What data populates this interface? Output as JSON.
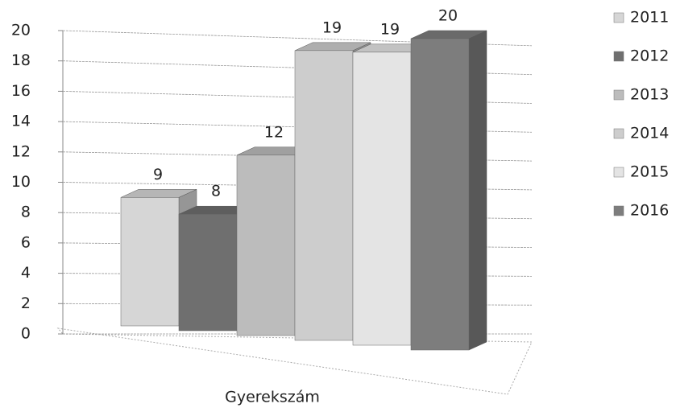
{
  "chart_data": {
    "type": "bar3d",
    "categories": [
      "Gyerekszám"
    ],
    "series": [
      {
        "name": "2011",
        "color": "#d6d6d6",
        "values": [
          9
        ]
      },
      {
        "name": "2012",
        "color": "#6f6f6f",
        "values": [
          8
        ]
      },
      {
        "name": "2013",
        "color": "#bcbcbc",
        "values": [
          12
        ]
      },
      {
        "name": "2014",
        "color": "#cdcdcd",
        "values": [
          19
        ]
      },
      {
        "name": "2015",
        "color": "#e4e4e4",
        "values": [
          19
        ]
      },
      {
        "name": "2016",
        "color": "#7d7d7d",
        "values": [
          20
        ]
      }
    ],
    "ylim": [
      0,
      20
    ],
    "yticks": [
      0,
      2,
      4,
      6,
      8,
      10,
      12,
      14,
      16,
      18,
      20
    ],
    "grid": true,
    "legend": "right"
  }
}
